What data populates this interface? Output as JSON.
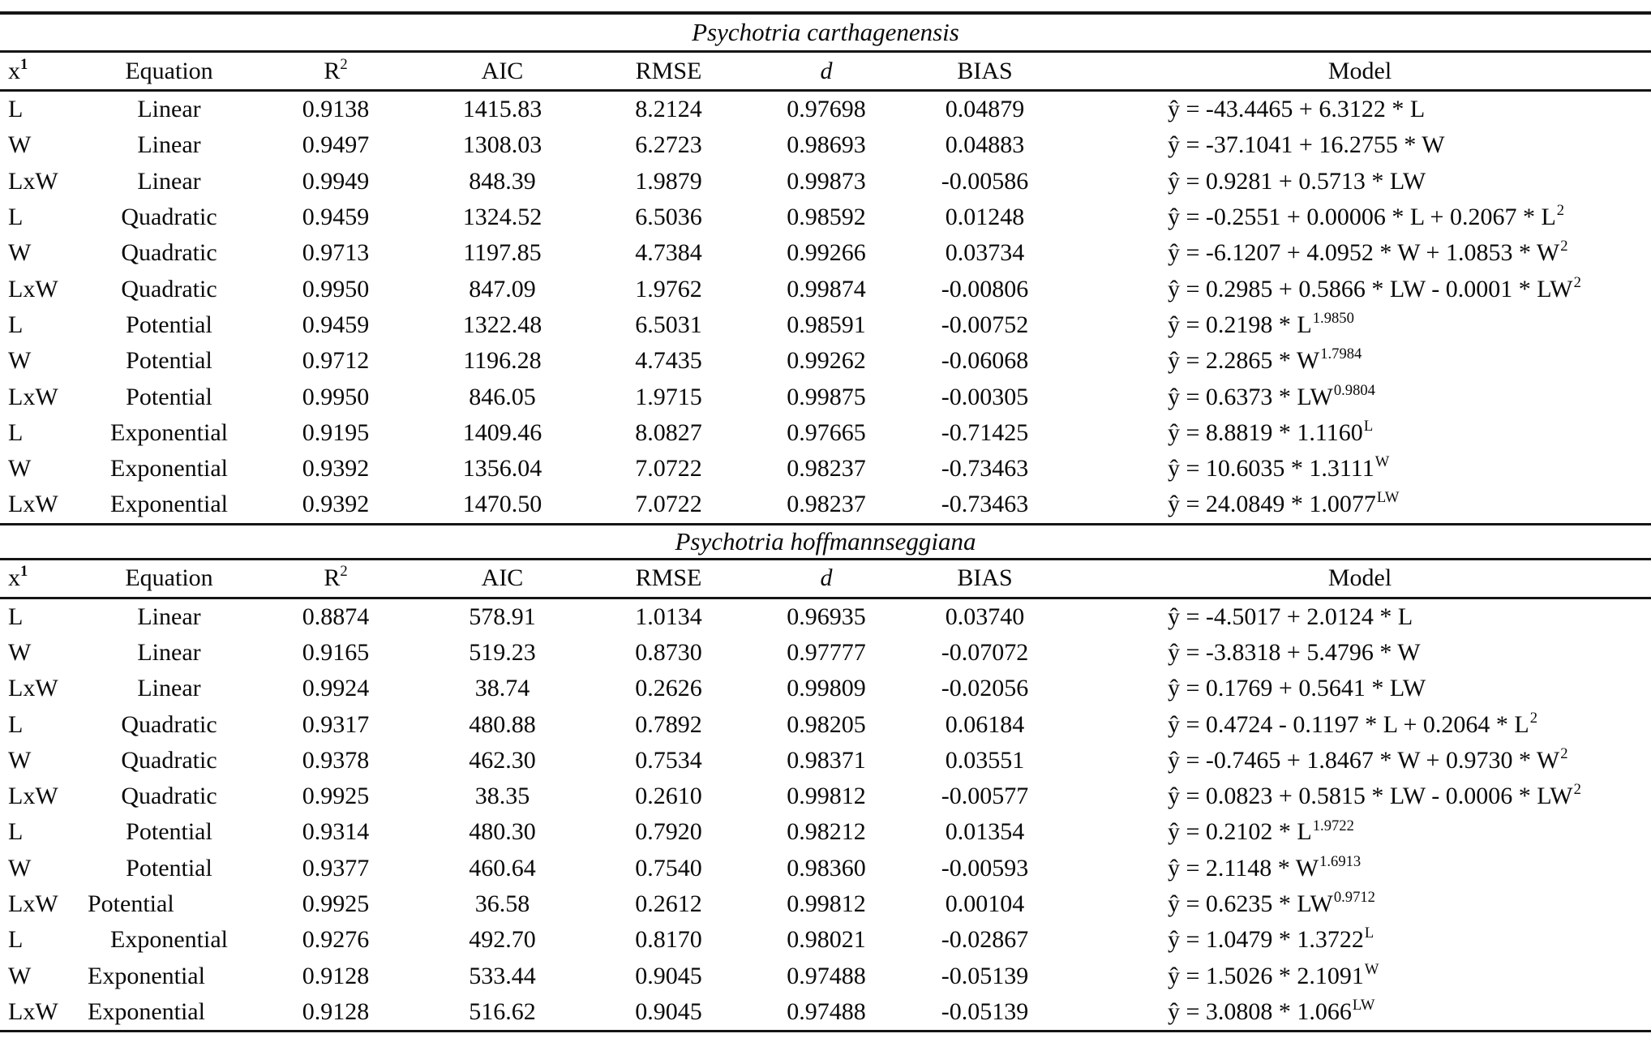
{
  "table1": {
    "title": "Psychotria carthagenensis",
    "headers": {
      "x": "x",
      "x_sup": "1",
      "equation": "Equation",
      "r2": "R",
      "r2_sup": "2",
      "aic": "AIC",
      "rmse": "RMSE",
      "d": "d",
      "bias": "BIAS",
      "model": "Model"
    },
    "rows": [
      {
        "x": "L",
        "equation": "Linear",
        "r2": "0.9138",
        "aic": "1415.83",
        "rmse": "8.2124",
        "d": "0.97698",
        "bias": "0.04879",
        "model_base": "ŷ = -43.4465 + 6.3122 * L",
        "model_sup": ""
      },
      {
        "x": "W",
        "equation": "Linear",
        "r2": "0.9497",
        "aic": "1308.03",
        "rmse": "6.2723",
        "d": "0.98693",
        "bias": "0.04883",
        "model_base": "ŷ = -37.1041 + 16.2755 * W",
        "model_sup": ""
      },
      {
        "x": "LxW",
        "equation": "Linear",
        "r2": "0.9949",
        "aic": "848.39",
        "rmse": "1.9879",
        "d": "0.99873",
        "bias": "-0.00586",
        "model_base": "ŷ = 0.9281 + 0.5713 * LW",
        "model_sup": ""
      },
      {
        "x": "L",
        "equation": "Quadratic",
        "r2": "0.9459",
        "aic": "1324.52",
        "rmse": "6.5036",
        "d": "0.98592",
        "bias": "0.01248",
        "model_base": "ŷ = -0.2551 + 0.00006 * L + 0.2067 * L",
        "model_sup": "2"
      },
      {
        "x": "W",
        "equation": "Quadratic",
        "r2": "0.9713",
        "aic": "1197.85",
        "rmse": "4.7384",
        "d": "0.99266",
        "bias": "0.03734",
        "model_base": "ŷ = -6.1207 + 4.0952 * W + 1.0853 * W",
        "model_sup": "2"
      },
      {
        "x": "LxW",
        "equation": "Quadratic",
        "r2": "0.9950",
        "aic": "847.09",
        "rmse": "1.9762",
        "d": "0.99874",
        "bias": "-0.00806",
        "model_base": "ŷ = 0.2985 + 0.5866 * LW - 0.0001 * LW",
        "model_sup": "2"
      },
      {
        "x": "L",
        "equation": "Potential",
        "r2": "0.9459",
        "aic": "1322.48",
        "rmse": "6.5031",
        "d": "0.98591",
        "bias": "-0.00752",
        "model_base": "ŷ = 0.2198 * L",
        "model_sup": "1.9850"
      },
      {
        "x": "W",
        "equation": "Potential",
        "r2": "0.9712",
        "aic": "1196.28",
        "rmse": "4.7435",
        "d": "0.99262",
        "bias": "-0.06068",
        "model_base": "ŷ = 2.2865 * W",
        "model_sup": "1.7984"
      },
      {
        "x": "LxW",
        "equation": "Potential",
        "r2": "0.9950",
        "aic": "846.05",
        "rmse": "1.9715",
        "d": "0.99875",
        "bias": "-0.00305",
        "model_base": "ŷ = 0.6373 * LW",
        "model_sup": "0.9804"
      },
      {
        "x": "L",
        "equation": "Exponential",
        "r2": "0.9195",
        "aic": "1409.46",
        "rmse": "8.0827",
        "d": "0.97665",
        "bias": "-0.71425",
        "model_base": "ŷ = 8.8819 * 1.1160",
        "model_sup": "L"
      },
      {
        "x": "W",
        "equation": "Exponential",
        "r2": "0.9392",
        "aic": "1356.04",
        "rmse": "7.0722",
        "d": "0.98237",
        "bias": "-0.73463",
        "model_base": "ŷ = 10.6035 * 1.3111",
        "model_sup": "W"
      },
      {
        "x": "LxW",
        "equation": "Exponential",
        "r2": "0.9392",
        "aic": "1470.50",
        "rmse": "7.0722",
        "d": "0.98237",
        "bias": "-0.73463",
        "model_base": "ŷ = 24.0849 * 1.0077",
        "model_sup": "LW"
      }
    ]
  },
  "table2": {
    "title": "Psychotria hoffmannseggiana",
    "headers": {
      "x": "x",
      "x_sup": "1",
      "equation": "Equation",
      "r2": "R",
      "r2_sup": "2",
      "aic": "AIC",
      "rmse": "RMSE",
      "d": "d",
      "bias": "BIAS",
      "model": "Model"
    },
    "rows": [
      {
        "x": "L",
        "equation": "Linear",
        "r2": "0.8874",
        "aic": "578.91",
        "rmse": "1.0134",
        "d": "0.96935",
        "bias": "0.03740",
        "model_base": "ŷ = -4.5017 + 2.0124 * L",
        "model_sup": ""
      },
      {
        "x": "W",
        "equation": "Linear",
        "r2": "0.9165",
        "aic": "519.23",
        "rmse": "0.8730",
        "d": "0.97777",
        "bias": "-0.07072",
        "model_base": "ŷ = -3.8318 + 5.4796 * W",
        "model_sup": ""
      },
      {
        "x": "LxW",
        "equation": "Linear",
        "r2": "0.9924",
        "aic": "38.74",
        "rmse": "0.2626",
        "d": "0.99809",
        "bias": "-0.02056",
        "model_base": "ŷ = 0.1769 + 0.5641 * LW",
        "model_sup": ""
      },
      {
        "x": "L",
        "equation": "Quadratic",
        "r2": "0.9317",
        "aic": "480.88",
        "rmse": "0.7892",
        "d": "0.98205",
        "bias": "0.06184",
        "model_base": "ŷ = 0.4724 - 0.1197 * L + 0.2064 * L",
        "model_sup": "2"
      },
      {
        "x": "W",
        "equation": "Quadratic",
        "r2": "0.9378",
        "aic": "462.30",
        "rmse": "0.7534",
        "d": "0.98371",
        "bias": "0.03551",
        "model_base": "ŷ = -0.7465 + 1.8467 * W + 0.9730 * W",
        "model_sup": "2"
      },
      {
        "x": "LxW",
        "equation": "Quadratic",
        "r2": "0.9925",
        "aic": "38.35",
        "rmse": "0.2610",
        "d": "0.99812",
        "bias": "-0.00577",
        "model_base": "ŷ = 0.0823 + 0.5815 * LW - 0.0006 * LW",
        "model_sup": "2"
      },
      {
        "x": "L",
        "equation": "Potential",
        "r2": "0.9314",
        "aic": "480.30",
        "rmse": "0.7920",
        "d": "0.98212",
        "bias": "0.01354",
        "model_base": "ŷ = 0.2102 * L",
        "model_sup": "1.9722"
      },
      {
        "x": "W",
        "equation": "Potential",
        "r2": "0.9377",
        "aic": "460.64",
        "rmse": "0.7540",
        "d": "0.98360",
        "bias": "-0.00593",
        "model_base": "ŷ = 2.1148 * W",
        "model_sup": "1.6913"
      },
      {
        "x": "LxW",
        "equation": "Potential",
        "eq_align": "left",
        "r2": "0.9925",
        "aic": "36.58",
        "rmse": "0.2612",
        "d": "0.99812",
        "bias": "0.00104",
        "model_base": "ŷ = 0.6235 * LW",
        "model_sup": "0.9712"
      },
      {
        "x": "L",
        "equation": "Exponential",
        "r2": "0.9276",
        "aic": "492.70",
        "rmse": "0.8170",
        "d": "0.98021",
        "bias": "-0.02867",
        "model_base": "ŷ = 1.0479 * 1.3722",
        "model_sup": "L"
      },
      {
        "x": "W",
        "equation": "Exponential",
        "eq_align": "left",
        "r2": "0.9128",
        "aic": "533.44",
        "rmse": "0.9045",
        "d": "0.97488",
        "bias": "-0.05139",
        "model_base": "ŷ = 1.5026 * 2.1091",
        "model_sup": "W"
      },
      {
        "x": "LxW",
        "equation": "Exponential",
        "eq_align": "left",
        "r2": "0.9128",
        "aic": "516.62",
        "rmse": "0.9045",
        "d": "0.97488",
        "bias": "-0.05139",
        "model_base": "ŷ = 3.0808 * 1.066",
        "model_sup": "LW"
      }
    ]
  }
}
